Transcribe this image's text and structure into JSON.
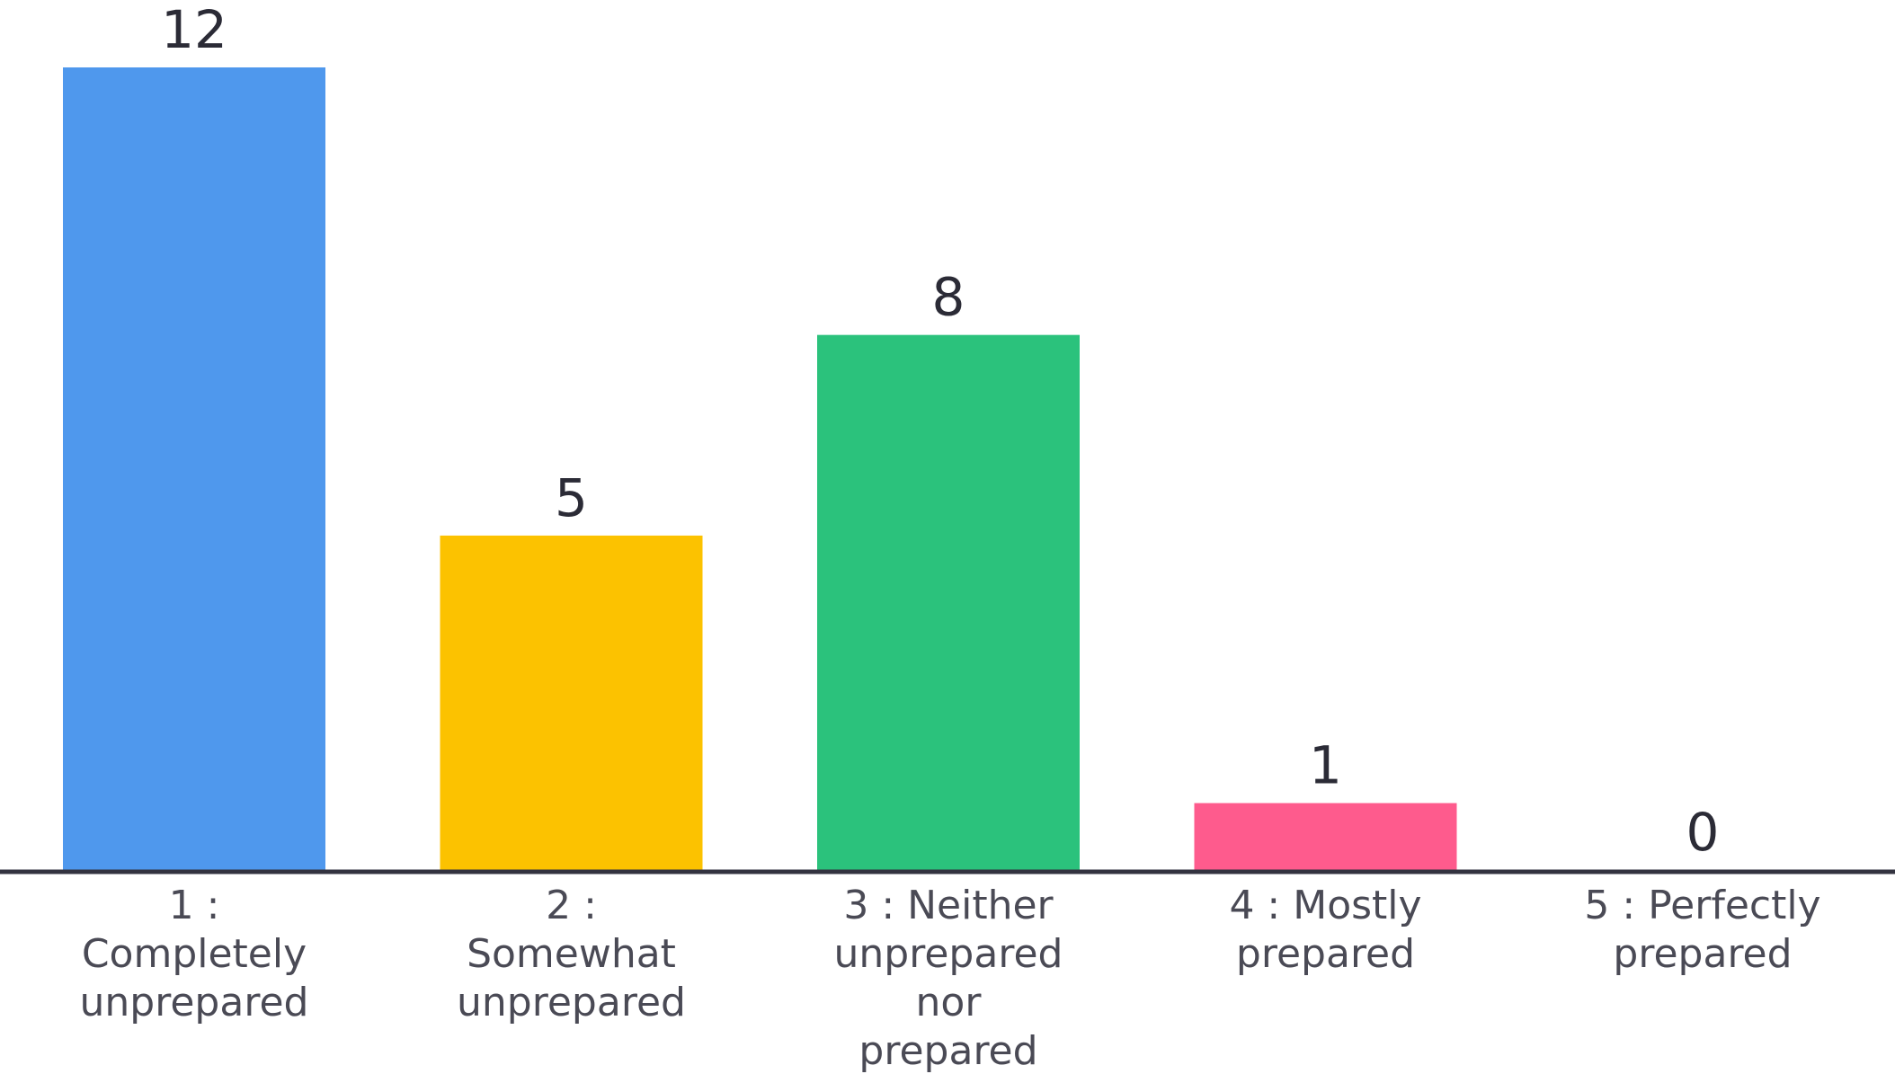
{
  "chart_data": {
    "type": "bar",
    "title": "",
    "xlabel": "",
    "ylabel": "",
    "categories": [
      [
        "1 :",
        "Completely",
        "unprepared"
      ],
      [
        "2 :",
        "Somewhat",
        "unprepared"
      ],
      [
        "3 : Neither",
        "unprepared",
        "nor",
        "prepared"
      ],
      [
        "4 : Mostly",
        "prepared"
      ],
      [
        "5 : Perfectly",
        "prepared"
      ]
    ],
    "values": [
      12,
      5,
      8,
      1,
      0
    ],
    "colors": [
      "#4f98ed",
      "#fcc200",
      "#2bc27c",
      "#fe5b8d",
      "#c8c8c8"
    ],
    "ylim": [
      0,
      12
    ],
    "grid": false,
    "legend": "none",
    "axis_color": "#333340"
  }
}
